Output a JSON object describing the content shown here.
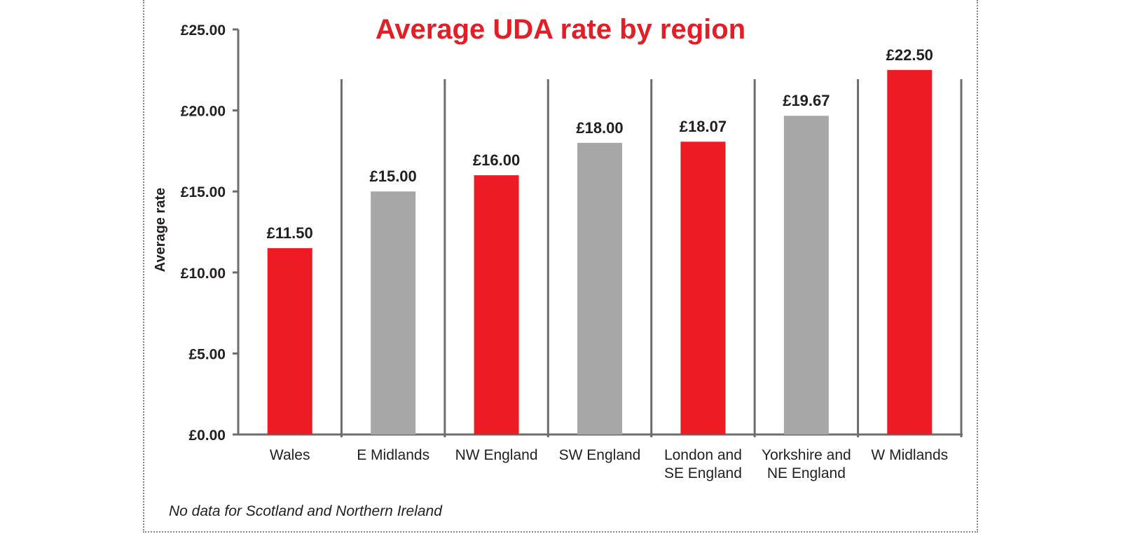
{
  "chart_data": {
    "type": "bar",
    "title": "Average UDA rate by region",
    "ylabel": "Average rate",
    "xlabel": "",
    "ylim": [
      0,
      25
    ],
    "yticks": [
      0,
      5,
      10,
      15,
      20,
      25
    ],
    "ytick_labels": [
      "£0.00",
      "£5.00",
      "£10.00",
      "£15.00",
      "£20.00",
      "£25.00"
    ],
    "categories": [
      [
        "Wales"
      ],
      [
        "E Midlands"
      ],
      [
        "NW England"
      ],
      [
        "SW England"
      ],
      [
        "London and",
        "SE England"
      ],
      [
        "Yorkshire and",
        "NE England"
      ],
      [
        "W Midlands"
      ]
    ],
    "values": [
      11.5,
      15.0,
      16.0,
      18.0,
      18.07,
      19.67,
      22.5
    ],
    "value_labels": [
      "£11.50",
      "£15.00",
      "£16.00",
      "£18.00",
      "£18.07",
      "£19.67",
      "£22.50"
    ],
    "bar_colors": [
      "#ed1c24",
      "#a7a7a7",
      "#ed1c24",
      "#a7a7a7",
      "#ed1c24",
      "#a7a7a7",
      "#ed1c24"
    ],
    "grid": false,
    "legend": "none"
  },
  "footnote": "No data for Scotland and Northern Ireland",
  "colors": {
    "accent_red": "#ed1c24",
    "title_red": "#e41e26",
    "bar_grey": "#a7a7a7",
    "axis": "#6d6d6d",
    "text": "#231f20"
  }
}
